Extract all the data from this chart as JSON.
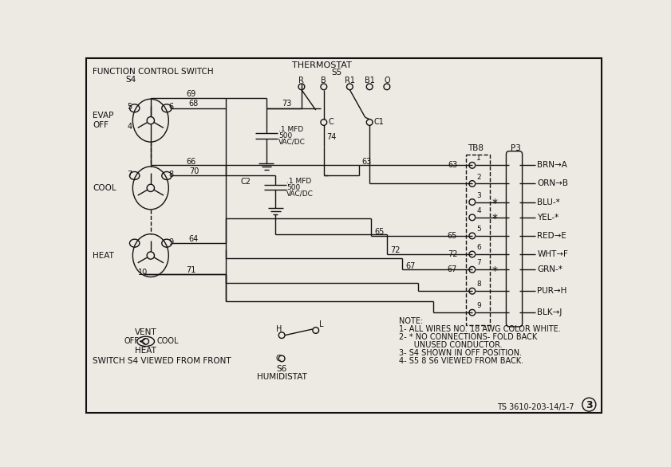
{
  "bg_color": "#ede9e3",
  "line_color": "#111111",
  "fig_width": 8.41,
  "fig_height": 5.86,
  "dpi": 100,
  "note_lines": [
    "NOTE:",
    "1- ALL WIRES NO. 18 AWG COLOR WHITE.",
    "2- * NO CONNECTIONS- FOLD BACK",
    "      UNUSED CONDUCTOR.",
    "3- S4 SHOWN IN OFF POSITION.",
    "4- S5 8 S6 VIEWED FROM BACK."
  ],
  "p3_wires": [
    {
      "color": "BRN",
      "arrow": "A",
      "star": false
    },
    {
      "color": "ORN",
      "arrow": "B",
      "star": false
    },
    {
      "color": "BLU",
      "arrow": "*",
      "star": true
    },
    {
      "color": "YEL",
      "arrow": "*",
      "star": true
    },
    {
      "color": "RED",
      "arrow": "E",
      "star": false
    },
    {
      "color": "WHT",
      "arrow": "F",
      "star": false
    },
    {
      "color": "GRN",
      "arrow": "*",
      "star": true
    },
    {
      "color": "PUR",
      "arrow": "H",
      "star": false
    },
    {
      "color": "BLK",
      "arrow": "J",
      "star": false
    }
  ],
  "wire_labels_left": [
    "63",
    "",
    "",
    "",
    "65",
    "72",
    "67",
    "",
    ""
  ],
  "bottom_note": "SWITCH S4 VIEWED FROM FRONT",
  "ts_label": "TS 3610-203-14/1-7",
  "page_num": "3"
}
